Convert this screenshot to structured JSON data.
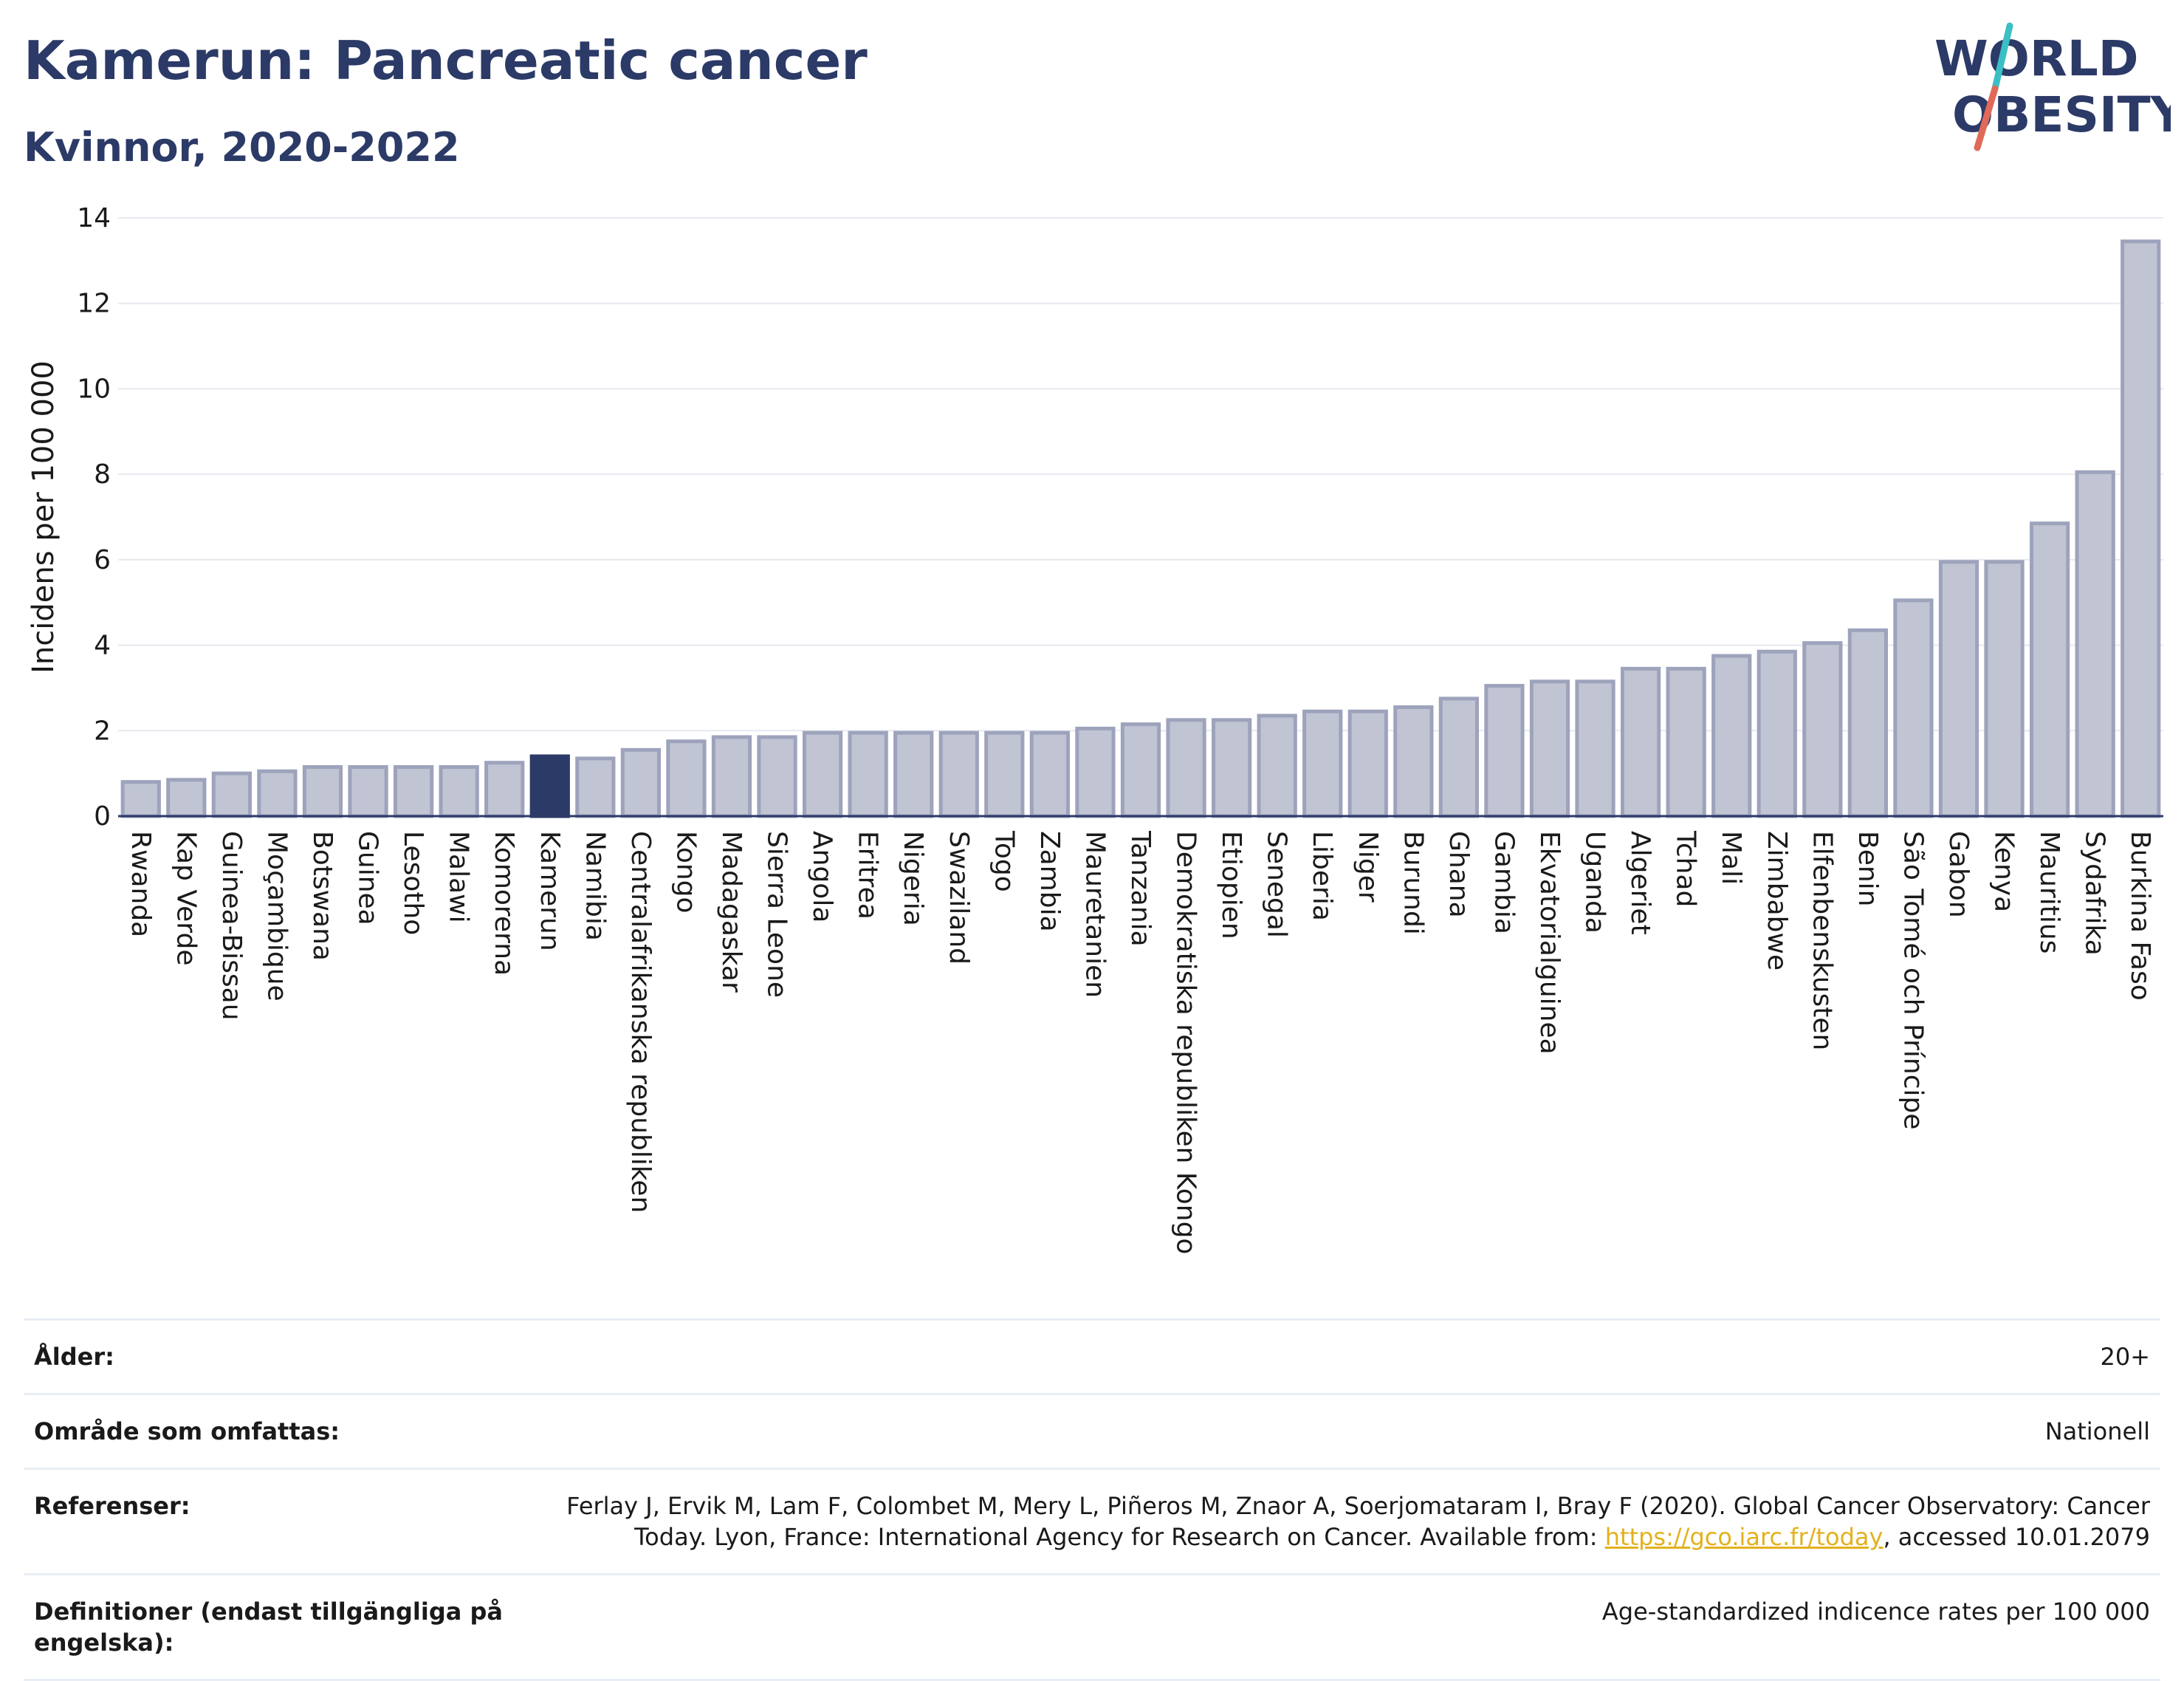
{
  "header": {
    "title": "Kamerun: Pancreatic cancer",
    "subtitle": "Kvinnor, 2020-2022",
    "logo_line1": "WORLD",
    "logo_line2": "OBESITY"
  },
  "colors": {
    "title": "#2b3a67",
    "bar": "#c0c4d3",
    "bar_stroke": "#9ea3bc",
    "highlight": "#2b3a67",
    "link": "#e3b11e",
    "logo_slash_teal": "#3bbfc4",
    "logo_slash_red": "#e06a5a"
  },
  "chart_data": {
    "type": "bar",
    "title": "Kamerun: Pancreatic cancer",
    "subtitle": "Kvinnor, 2020-2022",
    "xlabel": "",
    "ylabel": "Incidens per 100 000",
    "ylim": [
      0,
      14
    ],
    "yticks": [
      0,
      2,
      4,
      6,
      8,
      10,
      12,
      14
    ],
    "grid": true,
    "highlight": "Kamerun",
    "categories": [
      "Rwanda",
      "Kap Verde",
      "Guinea-Bissau",
      "Moçambique",
      "Botswana",
      "Guinea",
      "Lesotho",
      "Malawi",
      "Komorerna",
      "Kamerun",
      "Namibia",
      "Centralafrikanska republiken",
      "Kongo",
      "Madagaskar",
      "Sierra Leone",
      "Angola",
      "Eritrea",
      "Nigeria",
      "Swaziland",
      "Togo",
      "Zambia",
      "Mauretanien",
      "Tanzania",
      "Demokratiska republiken Kongo",
      "Etiopien",
      "Senegal",
      "Liberia",
      "Niger",
      "Burundi",
      "Ghana",
      "Gambia",
      "Ekvatorialguinea",
      "Uganda",
      "Algeriet",
      "Tchad",
      "Mali",
      "Zimbabwe",
      "Elfenbenskusten",
      "Benin",
      "São Tomé och Príncipe",
      "Gabon",
      "Kenya",
      "Mauritius",
      "Sydafrika",
      "Burkina Faso"
    ],
    "values": [
      0.8,
      0.85,
      1.0,
      1.05,
      1.15,
      1.15,
      1.15,
      1.15,
      1.25,
      1.4,
      1.35,
      1.55,
      1.75,
      1.85,
      1.85,
      1.95,
      1.95,
      1.95,
      1.95,
      1.95,
      1.95,
      2.05,
      2.15,
      2.25,
      2.25,
      2.35,
      2.45,
      2.45,
      2.55,
      2.75,
      3.05,
      3.15,
      3.15,
      3.45,
      3.45,
      3.75,
      3.85,
      4.05,
      4.35,
      5.05,
      5.95,
      5.95,
      6.85,
      8.05,
      13.45
    ]
  },
  "info": {
    "age_label": "Ålder:",
    "age_value": "20+",
    "area_label": "Område som omfattas:",
    "area_value": "Nationell",
    "refs_label": "Referenser:",
    "refs_line1": "Ferlay J, Ervik M, Lam F, Colombet M, Mery L, Piñeros M, Znaor A, Soerjomataram I, Bray F (2020). Global Cancer Observatory: Cancer",
    "refs_line2_pre": "Today. Lyon, France: International Agency for Research on Cancer. Available from: ",
    "refs_link": "https://gco.iarc.fr/today",
    "refs_line2_post": ", accessed 10.01.2079",
    "def_label": "Definitioner (endast tillgängliga på engelska):",
    "def_value": "Age-standardized indicence rates per 100 000"
  }
}
